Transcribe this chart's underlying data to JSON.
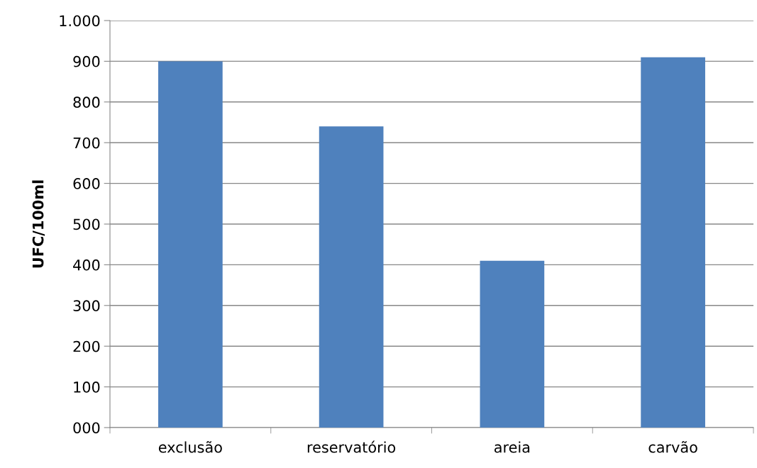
{
  "chart_data": {
    "type": "bar",
    "ylabel": "UFC/100ml",
    "categories": [
      "exclusão",
      "reservatório",
      "areia",
      "carvão"
    ],
    "values": [
      900,
      740,
      410,
      910
    ],
    "color": "#4f81bd",
    "ylim": [
      0,
      1000
    ],
    "yticks": [
      {
        "value": 0,
        "label": "000"
      },
      100,
      200,
      300,
      400,
      500,
      600,
      700,
      800,
      900,
      {
        "value": 1000,
        "label": "1.000"
      }
    ],
    "grid": "y",
    "legend": false
  }
}
